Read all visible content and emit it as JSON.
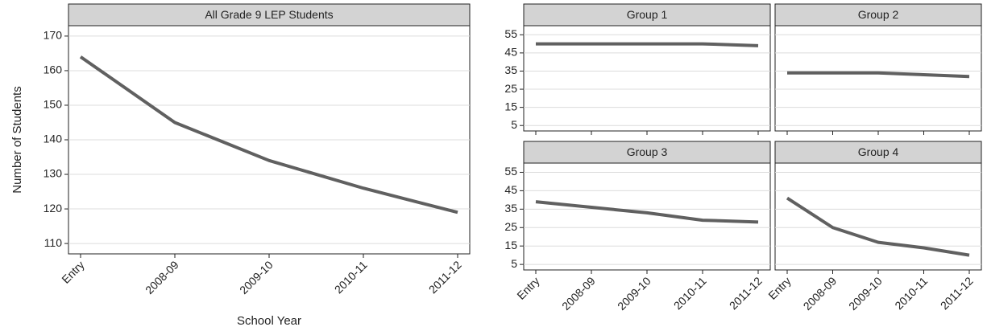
{
  "chart_data": [
    {
      "type": "line",
      "title": "All Grade 9 LEP Students",
      "y_label": "Number of Students",
      "x_label": "School Year",
      "categories": [
        "Entry",
        "2008-09",
        "2009-10",
        "2010-11",
        "2011-12"
      ],
      "values": [
        164,
        145,
        134,
        126,
        119
      ],
      "color": "#606060",
      "ylim": [
        107,
        173
      ],
      "yticks": [
        110,
        120,
        130,
        140,
        150,
        160,
        170
      ],
      "grid": true
    },
    {
      "type": "line",
      "title": "Group 1",
      "categories": [
        "Entry",
        "2008-09",
        "2009-10",
        "2010-11",
        "2011-12"
      ],
      "values": [
        50,
        50,
        50,
        50,
        49
      ],
      "color": "#606060",
      "ylim": [
        2,
        60
      ],
      "yticks": [
        5,
        15,
        25,
        35,
        45,
        55
      ],
      "grid": true
    },
    {
      "type": "line",
      "title": "Group 2",
      "categories": [
        "Entry",
        "2008-09",
        "2009-10",
        "2010-11",
        "2011-12"
      ],
      "values": [
        34,
        34,
        34,
        33,
        32
      ],
      "color": "#606060",
      "ylim": [
        2,
        60
      ],
      "yticks": [
        5,
        15,
        25,
        35,
        45,
        55
      ],
      "grid": true
    },
    {
      "type": "line",
      "title": "Group 3",
      "categories": [
        "Entry",
        "2008-09",
        "2009-10",
        "2010-11",
        "2011-12"
      ],
      "values": [
        39,
        36,
        33,
        29,
        28
      ],
      "color": "#606060",
      "ylim": [
        2,
        60
      ],
      "yticks": [
        5,
        15,
        25,
        35,
        45,
        55
      ],
      "grid": true
    },
    {
      "type": "line",
      "title": "Group 4",
      "categories": [
        "Entry",
        "2008-09",
        "2009-10",
        "2010-11",
        "2011-12"
      ],
      "values": [
        41,
        25,
        17,
        14,
        10
      ],
      "color": "#606060",
      "ylim": [
        2,
        60
      ],
      "yticks": [
        5,
        15,
        25,
        35,
        45,
        55
      ],
      "grid": true
    }
  ]
}
